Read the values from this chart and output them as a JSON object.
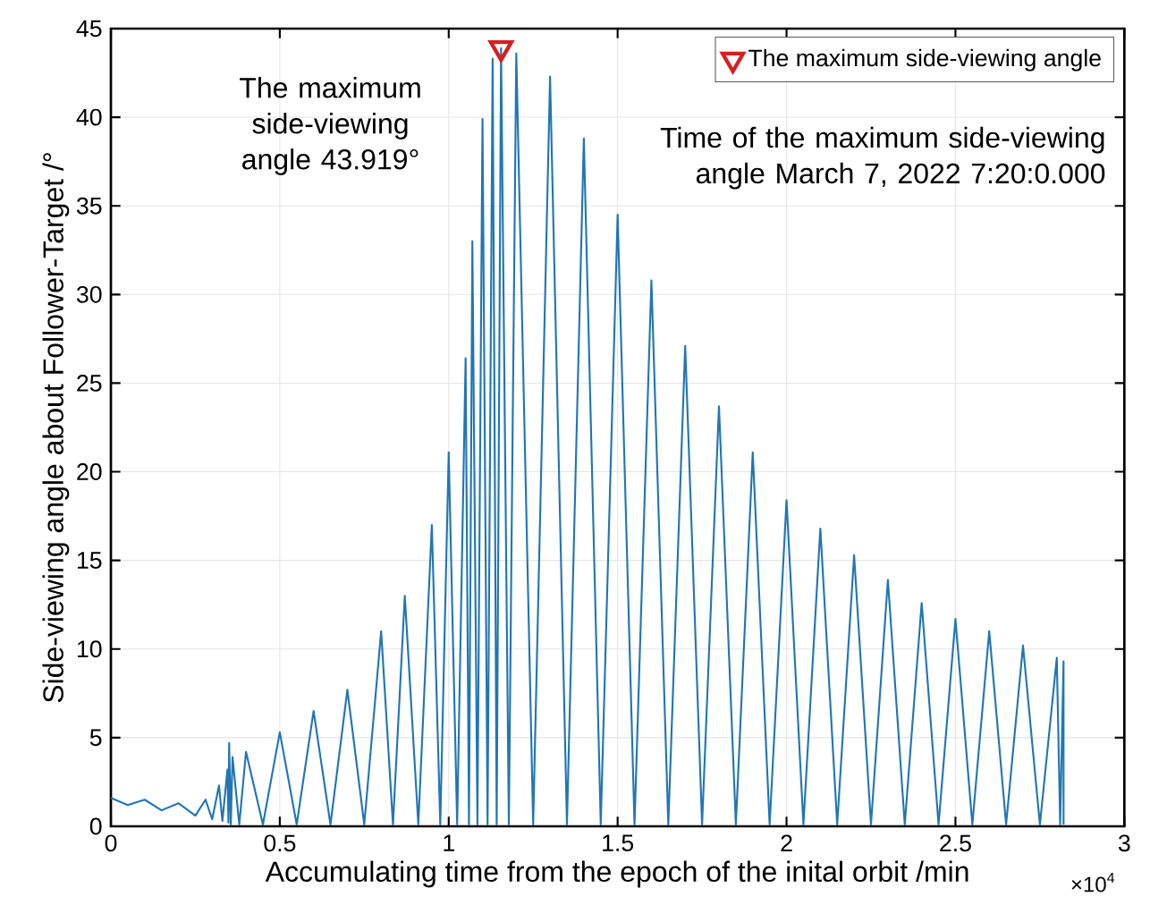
{
  "chart_data": {
    "type": "line",
    "xlabel": "Accumulating time from the epoch of the inital orbit /min",
    "ylabel": "Side-viewing angle about Follower-Target /°",
    "xlim": [
      0,
      3
    ],
    "ylim": [
      0,
      45
    ],
    "xticks": [
      0,
      0.5,
      1,
      1.5,
      2,
      2.5,
      3
    ],
    "yticks": [
      0,
      5,
      10,
      15,
      20,
      25,
      30,
      35,
      40,
      45
    ],
    "grid": true,
    "legend": "top right",
    "series": [
      {
        "color": "#2176b5",
        "x": [
          0,
          0.05,
          0.1,
          0.15,
          0.2,
          0.25,
          0.28,
          0.3,
          0.32,
          0.33,
          0.345,
          0.348,
          0.35,
          0.355,
          0.36,
          0.38,
          0.4,
          0.45,
          0.5,
          0.55,
          0.6,
          0.65,
          0.7,
          0.75,
          0.8,
          0.835,
          0.87,
          0.91,
          0.95,
          0.975,
          1,
          1.025,
          1.05,
          1.06,
          1.07,
          1.085,
          1.1,
          1.115,
          1.13,
          1.142,
          1.155,
          1.178,
          1.2,
          1.25,
          1.3,
          1.35,
          1.4,
          1.45,
          1.5,
          1.55,
          1.6,
          1.65,
          1.7,
          1.75,
          1.8,
          1.85,
          1.9,
          1.95,
          2,
          2.05,
          2.1,
          2.15,
          2.2,
          2.25,
          2.3,
          2.35,
          2.4,
          2.45,
          2.5,
          2.55,
          2.6,
          2.65,
          2.7,
          2.75,
          2.8,
          2.81,
          2.82,
          2.82
        ],
        "values": [
          1.6,
          1.2,
          1.5,
          0.9,
          1.3,
          0.6,
          1.5,
          0.4,
          2.3,
          0.3,
          3.2,
          0.2,
          4.7,
          0.1,
          3.9,
          0.1,
          4.2,
          0.1,
          5.3,
          0.1,
          6.5,
          0.1,
          7.7,
          0.1,
          11,
          0.1,
          13,
          0.1,
          17,
          0.1,
          21.1,
          0.1,
          26.4,
          0.1,
          33,
          0.1,
          39.9,
          0.1,
          43.3,
          0.1,
          43.9,
          0.1,
          43.6,
          0.1,
          42.3,
          0.1,
          38.8,
          0.1,
          34.5,
          0.1,
          30.8,
          0.1,
          27.1,
          0.1,
          23.7,
          0.1,
          21.1,
          0.1,
          18.4,
          0.1,
          16.8,
          0.1,
          15.3,
          0.1,
          13.9,
          0.1,
          12.6,
          0.1,
          11.7,
          0.1,
          11,
          0.1,
          10.2,
          0.1,
          9.5,
          0.1,
          9.3,
          0.1
        ]
      },
      {
        "type": "scatter",
        "name": "The maximum side-viewing angle",
        "color": "#d62020",
        "marker": "triangle",
        "x": [
          1.155
        ],
        "values": [
          43.9
        ]
      }
    ],
    "annotations": [
      "The maximum side-viewing angle 43.919°",
      "Time of the maximum side-viewing angle March 7, 2022 7:20:0.000",
      "×10$^{4}$"
    ]
  }
}
